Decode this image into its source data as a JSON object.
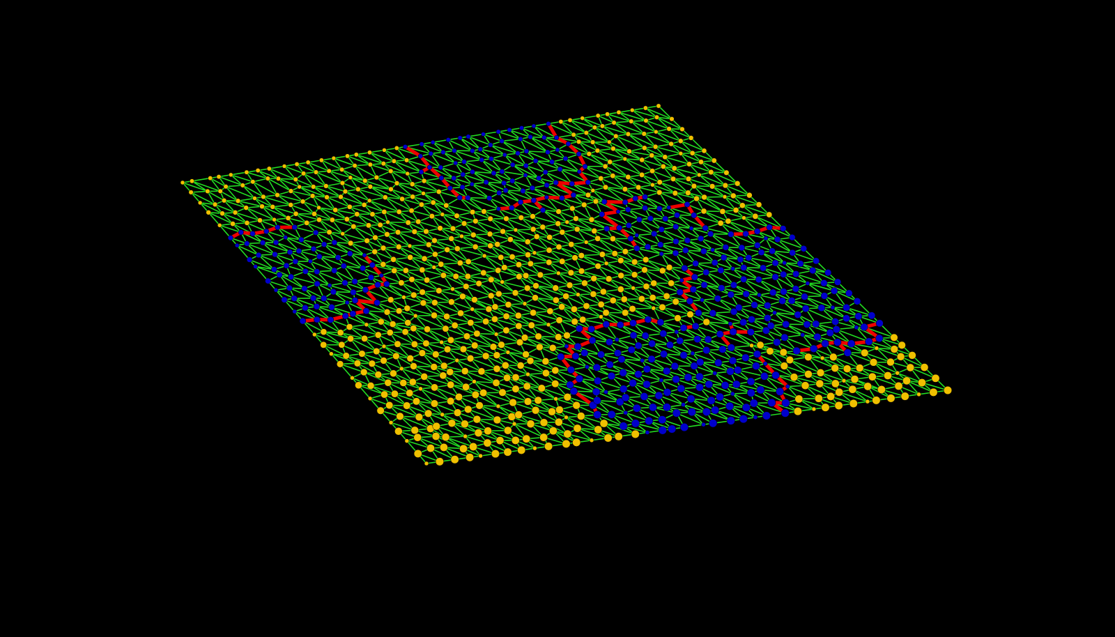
{
  "scene": {
    "background": "#000000",
    "edge_color": "#22dd22",
    "boundary_color": "#ee0000",
    "node_colors": {
      "primary": "#f0c000",
      "secondary": "#0000cc"
    }
  }
}
